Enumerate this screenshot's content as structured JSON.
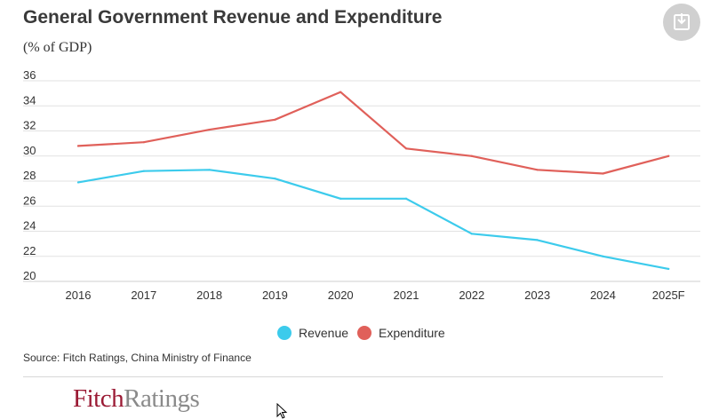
{
  "title": "General Government Revenue and Expenditure",
  "unit_label": "(% of GDP)",
  "download": {
    "icon": "download-icon"
  },
  "source": "Source: Fitch Ratings, China Ministry of Finance",
  "logo": {
    "part1": "Fitch",
    "part2": "Ratings"
  },
  "chart_data": {
    "type": "line",
    "categories": [
      "2016",
      "2017",
      "2018",
      "2019",
      "2020",
      "2021",
      "2022",
      "2023",
      "2024",
      "2025F"
    ],
    "ylim": [
      20,
      36
    ],
    "yticks": [
      20,
      22,
      24,
      26,
      28,
      30,
      32,
      34,
      36
    ],
    "grid": true,
    "legend_position": "bottom",
    "series": [
      {
        "name": "Revenue",
        "color": "#3ccbec",
        "values": [
          27.9,
          28.8,
          28.9,
          28.2,
          26.6,
          26.6,
          23.8,
          23.3,
          22.0,
          21.0
        ]
      },
      {
        "name": "Expenditure",
        "color": "#e0605a",
        "values": [
          30.8,
          31.1,
          32.1,
          32.9,
          35.1,
          30.6,
          30.0,
          28.9,
          28.6,
          30.0
        ]
      }
    ]
  }
}
